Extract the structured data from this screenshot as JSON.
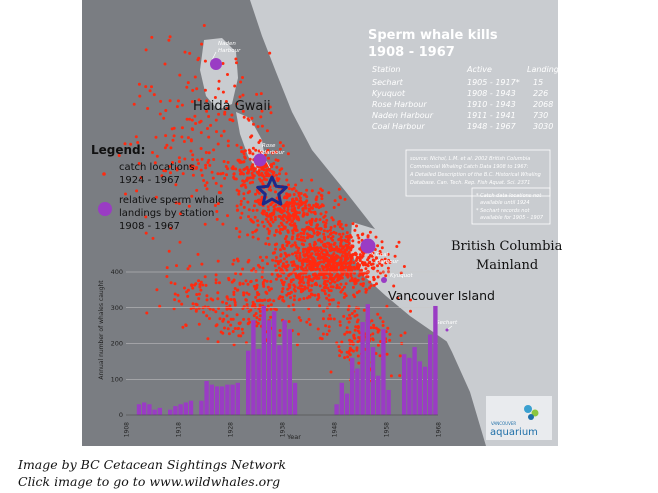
{
  "map": {
    "title_line1": "Sperm whale kills",
    "title_line2": "1908 - 1967",
    "land_color": "#c9ccd0",
    "sea_color": "#7a7d82",
    "kill_color": "#ff2a10",
    "station_color": "#9a3cc4"
  },
  "table": {
    "headers": [
      "Station",
      "Active",
      "Landings"
    ],
    "rows": [
      [
        "Sechart",
        "1905 - 1917*",
        "15"
      ],
      [
        "Kyuquot",
        "1908 - 1943",
        "226"
      ],
      [
        "Rose Harbour",
        "1910 - 1943",
        "2068"
      ],
      [
        "Naden Harbour",
        "1911 - 1941",
        "730"
      ],
      [
        "Coal Harbour",
        "1948 - 1967",
        "3030"
      ]
    ]
  },
  "source_note": [
    "source: Nichol, L.M. et al. 2002 British Columbia",
    "Commercial Whaling Catch Data 1908 to 1967:",
    "A Detailed Description of the B.C. Historical Whaling",
    "Database. Can. Tech. Rep. Fish Aquat. Sci. 2371"
  ],
  "footnotes": [
    "* Catch data locations not",
    "available until 1924",
    "* Sechart records not",
    "available for 1905 - 1907"
  ],
  "legend": {
    "title": "Legend:",
    "catch_label": [
      "catch locations",
      "1924 - 1967"
    ],
    "landing_label": [
      "relative sperm whale",
      "landings by station",
      "1908 - 1967"
    ]
  },
  "places": {
    "haida_gwaii": "Haida Gwaii",
    "bc_line1": "British Columbia",
    "bc_line2": "Mainland",
    "vancouver_island": "Vancouver Island",
    "naden": [
      "Naden",
      "Harbour"
    ],
    "rose": [
      "Rose",
      "Harbour"
    ],
    "coal": [
      "Coal",
      "Harbour"
    ],
    "kyuquot": "Kyuquot",
    "sechart": "Sechart"
  },
  "logo": [
    "VANCOUVER",
    "aquarium"
  ],
  "credits": {
    "line1": "Image by BC Cetacean Sightings Network",
    "line2": "Click image to go to www.wildwhales.org"
  },
  "chart_data": {
    "type": "bar",
    "title": "",
    "xlabel": "Year",
    "ylabel": "Annual number of whales caught",
    "ylim": [
      0,
      400
    ],
    "yticks": [
      0,
      100,
      200,
      300,
      400
    ],
    "xticks": [
      1908,
      1918,
      1928,
      1938,
      1948,
      1958,
      1968
    ],
    "bar_color": "#9a3cc4",
    "categories": [
      1908,
      1909,
      1910,
      1911,
      1912,
      1913,
      1914,
      1915,
      1916,
      1917,
      1918,
      1919,
      1920,
      1921,
      1922,
      1923,
      1924,
      1925,
      1926,
      1927,
      1928,
      1929,
      1930,
      1931,
      1932,
      1933,
      1934,
      1935,
      1936,
      1937,
      1938,
      1939,
      1940,
      1941,
      1942,
      1943,
      1944,
      1945,
      1946,
      1947,
      1948,
      1949,
      1950,
      1951,
      1952,
      1953,
      1954,
      1955,
      1956,
      1957,
      1958,
      1959,
      1960,
      1961,
      1962,
      1963,
      1964,
      1965,
      1966,
      1967
    ],
    "values": [
      0,
      0,
      30,
      35,
      30,
      15,
      20,
      0,
      15,
      25,
      30,
      35,
      40,
      0,
      40,
      95,
      85,
      80,
      80,
      85,
      85,
      90,
      0,
      180,
      265,
      185,
      305,
      265,
      290,
      195,
      265,
      240,
      90,
      0,
      0,
      0,
      0,
      0,
      0,
      0,
      30,
      90,
      60,
      160,
      130,
      260,
      310,
      190,
      110,
      240,
      70,
      0,
      0,
      170,
      160,
      190,
      150,
      135,
      225,
      305
    ]
  }
}
